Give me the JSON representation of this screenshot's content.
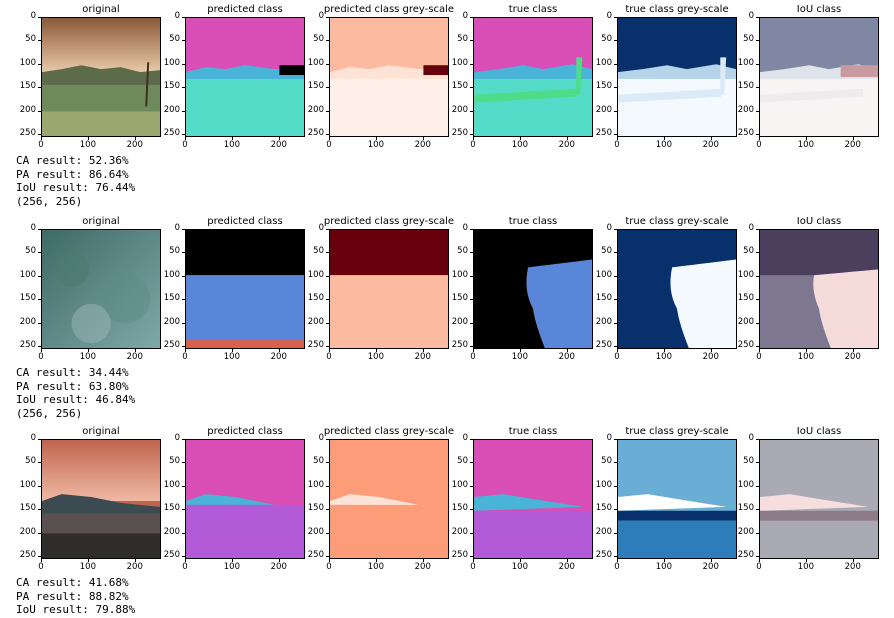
{
  "rows": [
    {
      "panels": [
        {
          "title": "original"
        },
        {
          "title": "predicted class"
        },
        {
          "title": "predicted class grey-scale"
        },
        {
          "title": "true class"
        },
        {
          "title": "true class grey-scale"
        },
        {
          "title": "IoU class"
        }
      ],
      "results": [
        "CA result: 52.36%",
        "PA result: 86.64%",
        "IoU result: 76.44%",
        "(256, 256)"
      ]
    },
    {
      "panels": [
        {
          "title": "original"
        },
        {
          "title": "predicted class"
        },
        {
          "title": "predicted class grey-scale"
        },
        {
          "title": "true class"
        },
        {
          "title": "true class grey-scale"
        },
        {
          "title": "IoU class"
        }
      ],
      "results": [
        "CA result: 34.44%",
        "PA result: 63.80%",
        "IoU result: 46.84%",
        "(256, 256)"
      ]
    },
    {
      "panels": [
        {
          "title": "original"
        },
        {
          "title": "predicted class"
        },
        {
          "title": "predicted class grey-scale"
        },
        {
          "title": "true class"
        },
        {
          "title": "true class grey-scale"
        },
        {
          "title": "IoU class"
        }
      ],
      "results": [
        "CA result: 41.68%",
        "PA result: 88.82%",
        "IoU result: 79.88%"
      ]
    }
  ],
  "axes": {
    "y_ticks": [
      "0",
      "50",
      "100",
      "150",
      "200",
      "250"
    ],
    "x_ticks": [
      "0",
      "100",
      "200"
    ]
  },
  "colors": {
    "sky_magenta": "#d94fb5",
    "cyan": "#4ab4d8",
    "teal": "#55dcc8",
    "green": "#4fdb8a",
    "black": "#000000",
    "blue": "#5a86d9",
    "purple": "#b25ad8",
    "dark_red": "#67000d",
    "salmon": "#fcbba1",
    "pale": "#fff0ea",
    "navy": "#08306b",
    "mid_blue": "#2d7dbb",
    "light_blue": "#6aaed6",
    "pale_blue": "#f4f9fe",
    "slate": "#7f87a2",
    "dark_slate": "#4b3f5e"
  }
}
